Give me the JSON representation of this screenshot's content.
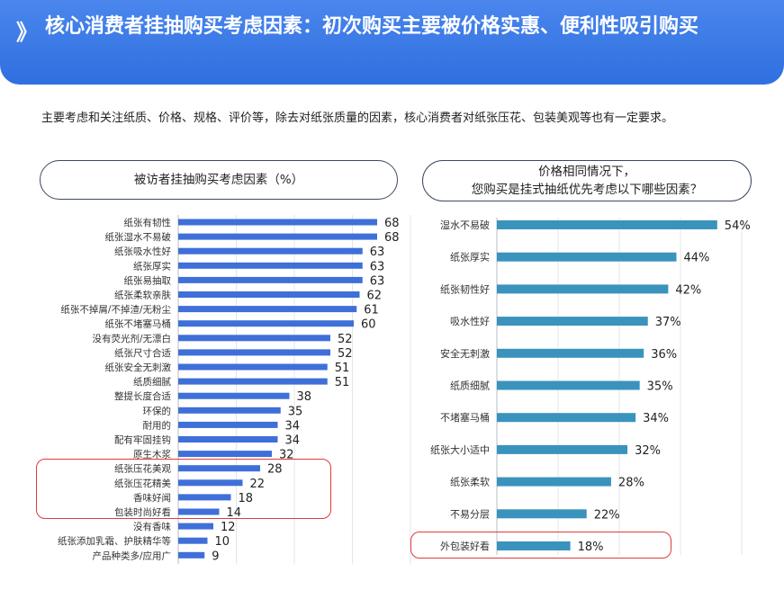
{
  "header": {
    "chevron": "》",
    "title": "核心消费者挂抽购买考虑因素：初次购买主要被价格实惠、便利性吸引购买"
  },
  "intro": "主要考虑和关注纸质、价格、规格、评价等，除去对纸张质量的因素，核心消费者对纸张压花、包装美观等也有一定要求。",
  "colors": {
    "banner": "#3a78e6",
    "left_bar": "#3f6fd8",
    "right_bar": "#3a93bd",
    "highlight": "#e03a3a"
  },
  "chart_data": [
    {
      "type": "bar",
      "orientation": "horizontal",
      "title": "被访者挂抽购买考虑因素（%）",
      "categories": [
        "纸张有韧性",
        "纸张湿水不易破",
        "纸张吸水性好",
        "纸张厚实",
        "纸张易抽取",
        "纸张柔软亲肤",
        "纸张不掉屑/不掉渣/无粉尘",
        "纸张不堵塞马桶",
        "没有荧光剂/无漂白",
        "纸张尺寸合适",
        "纸张安全无刺激",
        "纸质细腻",
        "整提长度合适",
        "环保的",
        "耐用的",
        "配有牢固挂钩",
        "原生木浆",
        "纸张压花美观",
        "纸张压花精美",
        "香味好闻",
        "包装时尚好看",
        "没有香味",
        "纸张添加乳霜、护肤精华等",
        "产品种类多/应用广"
      ],
      "values": [
        68,
        68,
        63,
        63,
        63,
        62,
        61,
        60,
        52,
        52,
        51,
        51,
        38,
        35,
        34,
        34,
        32,
        28,
        22,
        18,
        14,
        12,
        10,
        9
      ],
      "value_labels": [
        "68",
        "68",
        "63",
        "63",
        "63",
        "62",
        "61",
        "60",
        "52",
        "52",
        "51",
        "51",
        "38",
        "35",
        "34",
        "34",
        "32",
        "28",
        "22",
        "18",
        "14",
        "12",
        "10",
        "9"
      ],
      "highlighted": [
        "纸张压花美观",
        "纸张压花精美",
        "香味好闻",
        "包装时尚好看"
      ],
      "xlim": [
        0,
        100
      ],
      "grid": "vertical lines"
    },
    {
      "type": "bar",
      "orientation": "horizontal",
      "title": "价格相同情况下，\n您购买是挂式抽纸优先考虑以下哪些因素？",
      "categories": [
        "湿水不易破",
        "纸张厚实",
        "纸张韧性好",
        "吸水性好",
        "安全无刺激",
        "纸质细腻",
        "不堵塞马桶",
        "纸张大小适中",
        "纸张柔软",
        "不易分层",
        "外包装好看"
      ],
      "values": [
        54,
        44,
        42,
        37,
        36,
        35,
        34,
        32,
        28,
        22,
        18
      ],
      "value_labels": [
        "54%",
        "44%",
        "42%",
        "37%",
        "36%",
        "35%",
        "34%",
        "32%",
        "28%",
        "22%",
        "18%"
      ],
      "highlighted": [
        "外包装好看"
      ],
      "xlim": [
        0,
        60
      ],
      "grid": "vertical lines"
    }
  ]
}
